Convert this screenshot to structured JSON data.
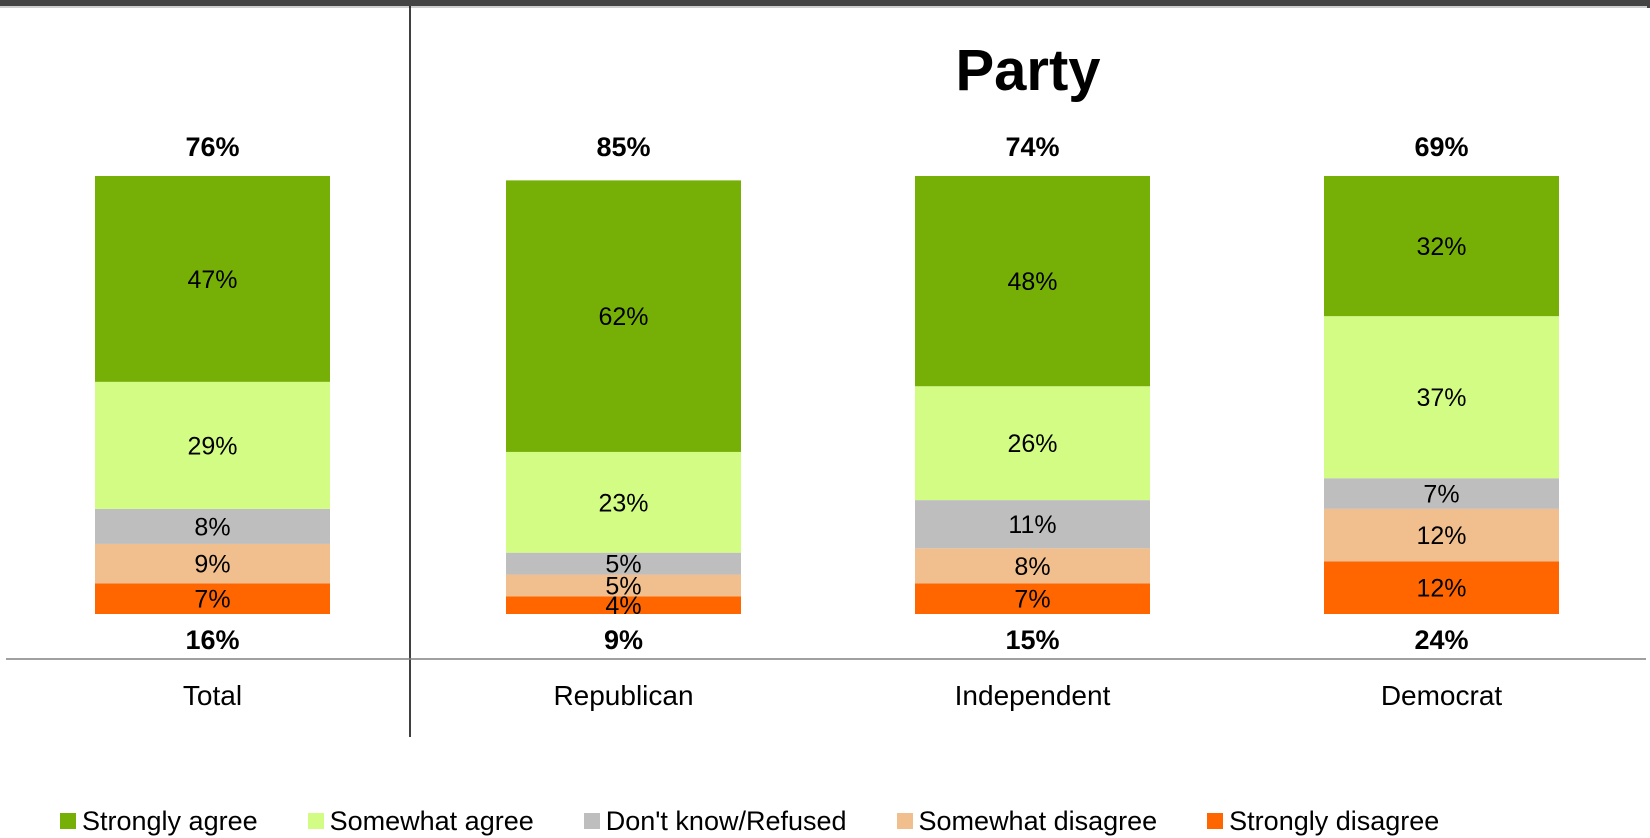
{
  "chart_data": {
    "type": "bar",
    "stacked": true,
    "group_title": "Party",
    "categories": [
      "Total",
      "Republican",
      "Independent",
      "Democrat"
    ],
    "series": [
      {
        "name": "Strongly agree",
        "color": "#76B007",
        "values": [
          47,
          62,
          48,
          32
        ],
        "labels": [
          "47%",
          "62%",
          "48%",
          "32%"
        ]
      },
      {
        "name": "Somewhat agree",
        "color": "#D3FC85",
        "values": [
          29,
          23,
          26,
          37
        ],
        "labels": [
          "29%",
          "23%",
          "26%",
          "37%"
        ]
      },
      {
        "name": "Don't know/Refused",
        "color": "#BEBEBE",
        "values": [
          8,
          5,
          11,
          7
        ],
        "labels": [
          "8%",
          "5%",
          "11%",
          "7%"
        ]
      },
      {
        "name": "Somewhat disagree",
        "color": "#F0BF8D",
        "values": [
          9,
          5,
          8,
          12
        ],
        "labels": [
          "9%",
          "5%",
          "8%",
          "12%"
        ]
      },
      {
        "name": "Strongly disagree",
        "color": "#FF6600",
        "values": [
          7,
          4,
          7,
          12
        ],
        "labels": [
          "7%",
          "4%",
          "7%",
          "12%"
        ]
      }
    ],
    "totals_agree": [
      "76%",
      "85%",
      "74%",
      "69%"
    ],
    "totals_disagree": [
      "16%",
      "9%",
      "15%",
      "24%"
    ],
    "legend_position": "bottom",
    "grid": false
  }
}
